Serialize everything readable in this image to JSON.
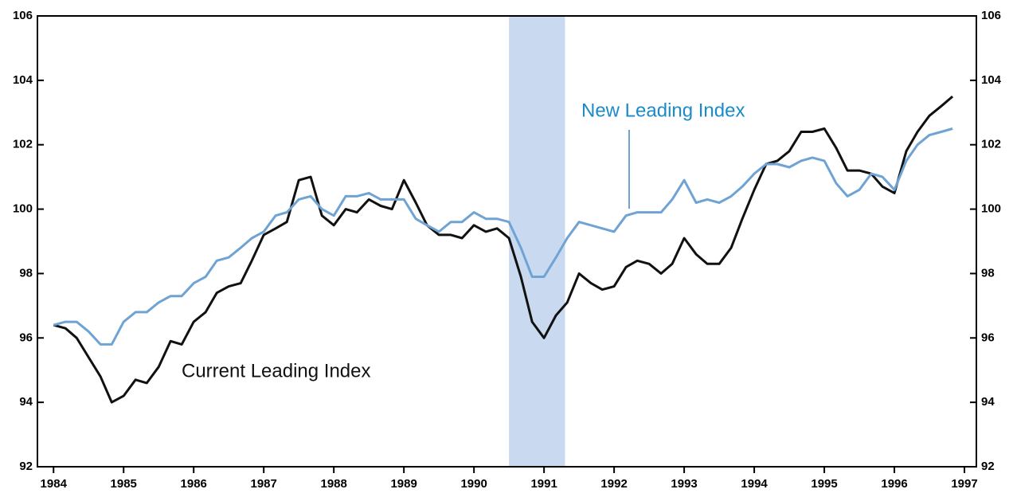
{
  "chart_data": {
    "type": "line",
    "x": [
      1984.0,
      1984.17,
      1984.33,
      1984.5,
      1984.67,
      1984.83,
      1985.0,
      1985.17,
      1985.33,
      1985.5,
      1985.67,
      1985.83,
      1986.0,
      1986.17,
      1986.33,
      1986.5,
      1986.67,
      1986.83,
      1987.0,
      1987.17,
      1987.33,
      1987.5,
      1987.67,
      1987.83,
      1988.0,
      1988.17,
      1988.33,
      1988.5,
      1988.67,
      1988.83,
      1989.0,
      1989.17,
      1989.33,
      1989.5,
      1989.67,
      1989.83,
      1990.0,
      1990.17,
      1990.33,
      1990.5,
      1990.67,
      1990.83,
      1991.0,
      1991.17,
      1991.33,
      1991.5,
      1991.67,
      1991.83,
      1992.0,
      1992.17,
      1992.33,
      1992.5,
      1992.67,
      1992.83,
      1993.0,
      1993.17,
      1993.33,
      1993.5,
      1993.67,
      1993.83,
      1994.0,
      1994.17,
      1994.33,
      1994.5,
      1994.67,
      1994.83,
      1995.0,
      1995.17,
      1995.33,
      1995.5,
      1995.67,
      1995.83,
      1996.0,
      1996.17,
      1996.33,
      1996.5,
      1996.67,
      1996.83
    ],
    "series": [
      {
        "name": "Current Leading Index",
        "color": "#111111",
        "values": [
          96.4,
          96.3,
          96.0,
          95.4,
          94.8,
          94.0,
          94.2,
          94.7,
          94.6,
          95.1,
          95.9,
          95.8,
          96.5,
          96.8,
          97.4,
          97.6,
          97.7,
          98.4,
          99.2,
          99.4,
          99.6,
          100.9,
          101.0,
          99.8,
          99.5,
          100.0,
          99.9,
          100.3,
          100.1,
          100.0,
          100.9,
          100.2,
          99.5,
          99.2,
          99.2,
          99.1,
          99.5,
          99.3,
          99.4,
          99.1,
          97.9,
          96.5,
          96.0,
          96.7,
          97.1,
          98.0,
          97.7,
          97.5,
          97.6,
          98.2,
          98.4,
          98.3,
          98.0,
          98.3,
          99.1,
          98.6,
          98.3,
          98.3,
          98.8,
          99.7,
          100.6,
          101.4,
          101.5,
          101.8,
          102.4,
          102.4,
          102.5,
          101.9,
          101.2,
          101.2,
          101.1,
          100.7,
          100.5,
          101.8,
          102.4,
          102.9,
          103.2,
          103.5
        ]
      },
      {
        "name": "New Leading Index",
        "color": "#6fa3d3",
        "label_color": "#1a8ac9",
        "values": [
          96.4,
          96.5,
          96.5,
          96.2,
          95.8,
          95.8,
          96.5,
          96.8,
          96.8,
          97.1,
          97.3,
          97.3,
          97.7,
          97.9,
          98.4,
          98.5,
          98.8,
          99.1,
          99.3,
          99.8,
          99.9,
          100.3,
          100.4,
          100.0,
          99.8,
          100.4,
          100.4,
          100.5,
          100.3,
          100.3,
          100.3,
          99.7,
          99.5,
          99.3,
          99.6,
          99.6,
          99.9,
          99.7,
          99.7,
          99.6,
          98.8,
          97.9,
          97.9,
          98.5,
          99.1,
          99.6,
          99.5,
          99.4,
          99.3,
          99.8,
          99.9,
          99.9,
          99.9,
          100.3,
          100.9,
          100.2,
          100.3,
          100.2,
          100.4,
          100.7,
          101.1,
          101.4,
          101.4,
          101.3,
          101.5,
          101.6,
          101.5,
          100.8,
          100.4,
          100.6,
          101.1,
          101.0,
          100.6,
          101.5,
          102.0,
          102.3,
          102.4,
          102.5
        ]
      }
    ],
    "xlim": [
      1983.77,
      1997.17
    ],
    "xticks": [
      1984,
      1985,
      1986,
      1987,
      1988,
      1989,
      1990,
      1991,
      1992,
      1993,
      1994,
      1995,
      1996,
      1997
    ],
    "ylim": [
      92,
      106
    ],
    "yticks": [
      92,
      94,
      96,
      98,
      100,
      102,
      104,
      106
    ],
    "y2lim": [
      92,
      106
    ],
    "y2ticks": [
      92,
      94,
      96,
      98,
      100,
      102,
      104,
      106
    ],
    "shaded_regions": [
      [
        1990.5,
        1991.3
      ]
    ],
    "shade_color": "#c9d9f0"
  }
}
